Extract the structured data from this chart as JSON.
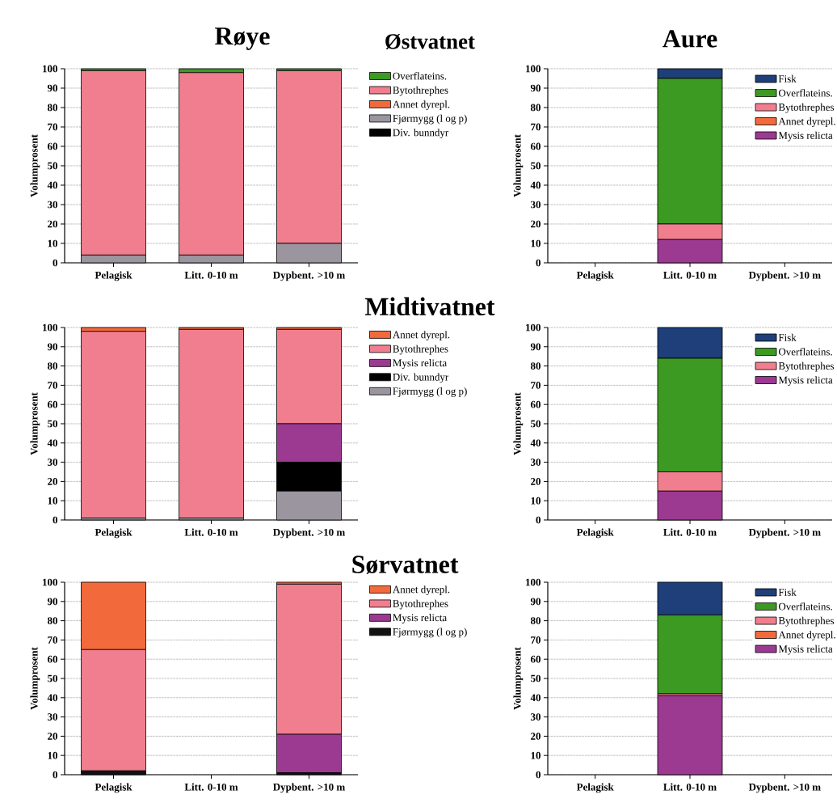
{
  "chart_data": [
    {
      "type": "bar",
      "stacked": true,
      "title": "Røye",
      "annotations": [
        "Østvatnet"
      ],
      "ylabel": "Volumprosent",
      "categories": [
        "Pelagisk",
        "Litt. 0-10 m",
        "Dypbent. >10 m"
      ],
      "ylim": [
        0,
        100
      ],
      "yticks": [
        0,
        10,
        20,
        30,
        40,
        50,
        60,
        70,
        80,
        90,
        100
      ],
      "grid": "y",
      "legend": "right",
      "series": [
        {
          "name": "Div. bunndyr",
          "color": "#000000",
          "values": [
            null,
            null,
            null
          ]
        },
        {
          "name": "Fjørmygg (l og p)",
          "color": "#9b959f",
          "values": [
            4,
            4,
            10
          ]
        },
        {
          "name": "Annet dyrepl.",
          "color": "#f26a3c",
          "values": [
            null,
            null,
            null
          ]
        },
        {
          "name": "Bytothrephes",
          "color": "#f07e8e",
          "values": [
            95,
            94,
            89
          ]
        },
        {
          "name": "Overflateins.",
          "color": "#3c9a22",
          "values": [
            1,
            2,
            1
          ]
        }
      ]
    },
    {
      "type": "bar",
      "stacked": true,
      "title": "Aure",
      "ylabel": "Volumprosent",
      "categories": [
        "Pelagisk",
        "Litt. 0-10 m",
        "Dypbent. >10 m"
      ],
      "ylim": [
        0,
        100
      ],
      "yticks": [
        0,
        10,
        20,
        30,
        40,
        50,
        60,
        70,
        80,
        90,
        100
      ],
      "grid": "y",
      "legend": "top right",
      "series": [
        {
          "name": "Mysis relicta",
          "color": "#9c3a92",
          "values": [
            null,
            12,
            null
          ]
        },
        {
          "name": "Annet dyrepl.",
          "color": "#f26a3c",
          "values": [
            null,
            null,
            null
          ]
        },
        {
          "name": "Bytothrephes",
          "color": "#f07e8e",
          "values": [
            null,
            8,
            null
          ]
        },
        {
          "name": "Overflateins.",
          "color": "#3c9a22",
          "values": [
            null,
            75,
            null
          ]
        },
        {
          "name": "Fisk",
          "color": "#1e3f7a",
          "values": [
            null,
            5,
            null
          ]
        }
      ]
    },
    {
      "type": "bar",
      "stacked": true,
      "title": "Midtivatnet",
      "ylabel": "Volumprosent",
      "categories": [
        "Pelagisk",
        "Litt. 0-10 m",
        "Dypbent. >10 m"
      ],
      "ylim": [
        0,
        100
      ],
      "yticks": [
        0,
        10,
        20,
        30,
        40,
        50,
        60,
        70,
        80,
        90,
        100
      ],
      "grid": "y",
      "legend": "right",
      "series": [
        {
          "name": "Fjørmygg (l og p)",
          "color": "#9b959f",
          "values": [
            1,
            1,
            15
          ]
        },
        {
          "name": "Div. bunndyr",
          "color": "#000000",
          "values": [
            null,
            null,
            15
          ]
        },
        {
          "name": "Mysis relicta",
          "color": "#9c3a92",
          "values": [
            null,
            null,
            20
          ]
        },
        {
          "name": "Bytothrephes",
          "color": "#f07e8e",
          "values": [
            97,
            98,
            49
          ]
        },
        {
          "name": "Annet dyrepl.",
          "color": "#f26a3c",
          "values": [
            2,
            1,
            1
          ]
        }
      ]
    },
    {
      "type": "bar",
      "stacked": true,
      "ylabel": "Volumprosent",
      "categories": [
        "Pelagisk",
        "Litt. 0-10 m",
        "Dypbent. >10 m"
      ],
      "ylim": [
        0,
        100
      ],
      "yticks": [
        0,
        10,
        20,
        30,
        40,
        50,
        60,
        70,
        80,
        90,
        100
      ],
      "grid": "y",
      "legend": "top right",
      "series": [
        {
          "name": "Mysis relicta",
          "color": "#9c3a92",
          "values": [
            null,
            15,
            null
          ]
        },
        {
          "name": "Bytothrephes",
          "color": "#f07e8e",
          "values": [
            null,
            10,
            null
          ]
        },
        {
          "name": "Overflateins.",
          "color": "#3c9a22",
          "values": [
            null,
            59,
            null
          ]
        },
        {
          "name": "Fisk",
          "color": "#1e3f7a",
          "values": [
            null,
            16,
            null
          ]
        }
      ]
    },
    {
      "type": "bar",
      "stacked": true,
      "title": "Sørvatnet",
      "ylabel": "Volumprosent",
      "categories": [
        "Pelagisk",
        "Litt. 0-10 m",
        "Dypbent. >10 m"
      ],
      "ylim": [
        0,
        100
      ],
      "yticks": [
        0,
        10,
        20,
        30,
        40,
        50,
        60,
        70,
        80,
        90,
        100
      ],
      "grid": "y",
      "legend": "right",
      "series": [
        {
          "name": "Fjørmygg (l og p)",
          "color": "#111111",
          "values": [
            2,
            null,
            1
          ]
        },
        {
          "name": "Mysis relicta",
          "color": "#9c3a92",
          "values": [
            null,
            null,
            20
          ]
        },
        {
          "name": "Bytothrephes",
          "color": "#f07e8e",
          "values": [
            63,
            null,
            78
          ]
        },
        {
          "name": "Annet dyrepl.",
          "color": "#f26a3c",
          "values": [
            35,
            null,
            1
          ]
        }
      ]
    },
    {
      "type": "bar",
      "stacked": true,
      "ylabel": "Volumprosent",
      "categories": [
        "Pelagisk",
        "Litt. 0-10 m",
        "Dypbent. >10 m"
      ],
      "ylim": [
        0,
        100
      ],
      "yticks": [
        0,
        10,
        20,
        30,
        40,
        50,
        60,
        70,
        80,
        90,
        100
      ],
      "grid": "y",
      "legend": "top right",
      "series": [
        {
          "name": "Mysis relicta",
          "color": "#9c3a92",
          "values": [
            null,
            41,
            null
          ]
        },
        {
          "name": "Annet dyrepl.",
          "color": "#f26a3c",
          "values": [
            null,
            null,
            null
          ]
        },
        {
          "name": "Bytothrephes",
          "color": "#f07e8e",
          "values": [
            null,
            1,
            null
          ]
        },
        {
          "name": "Overflateins.",
          "color": "#3c9a22",
          "values": [
            null,
            41,
            null
          ]
        },
        {
          "name": "Fisk",
          "color": "#1e3f7a",
          "values": [
            null,
            17,
            null
          ]
        }
      ]
    }
  ]
}
